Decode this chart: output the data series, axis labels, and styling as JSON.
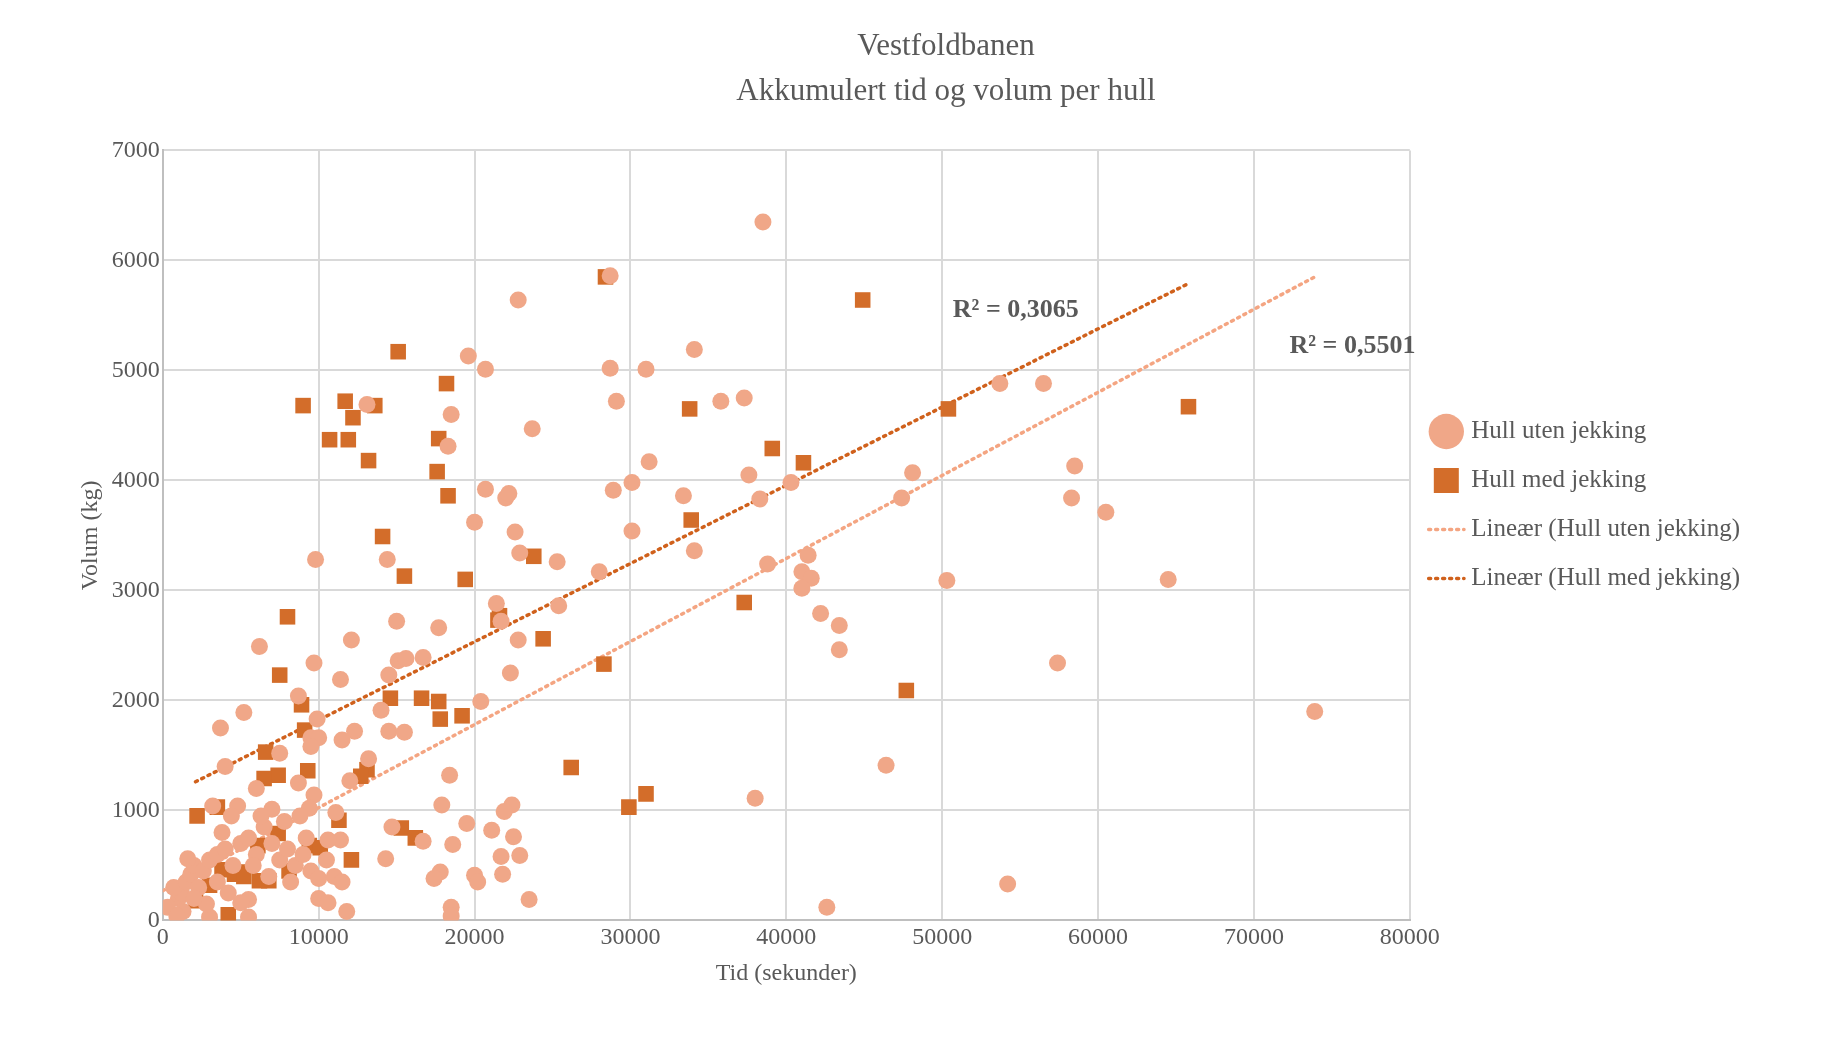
{
  "chart_data": {
    "type": "scatter",
    "title": "Vestfoldbanen",
    "subtitle": "Akkumulert tid og volum per hull",
    "xlabel": "Tid (sekunder)",
    "ylabel": "Volum (kg)",
    "xlim": [
      0,
      80000
    ],
    "xticks": [
      0,
      10000,
      20000,
      30000,
      40000,
      50000,
      60000,
      70000,
      80000
    ],
    "ylim": [
      0,
      7000
    ],
    "yticks": [
      0,
      1000,
      2000,
      3000,
      4000,
      5000,
      6000,
      7000
    ],
    "grid": true,
    "legend": "right",
    "series": [
      {
        "name": "Hull uten jekking",
        "marker": "circle",
        "color": "#f0a788",
        "x": [
          38500,
          28700,
          22800,
          34100,
          19600,
          20700,
          28700,
          31000,
          35800,
          37300,
          29100,
          13100,
          53700,
          56500,
          18500,
          18300,
          23700,
          31200,
          48100,
          58500,
          37600,
          40300,
          30100,
          28900,
          20700,
          33400,
          22000,
          22200,
          38300,
          47400,
          58300,
          60500,
          20000,
          22600,
          30100,
          34100,
          22900,
          41400,
          14400,
          9800,
          25300,
          38800,
          41000,
          28000,
          41600,
          50300,
          64500,
          41000,
          21400,
          25400,
          42200,
          15000,
          17700,
          43400,
          21700,
          22800,
          12100,
          6200,
          43400,
          57400,
          9700,
          15100,
          16700,
          15600,
          14500,
          22300,
          11400,
          8700,
          20400,
          9900,
          14000,
          73900,
          5200,
          3700,
          14500,
          15500,
          12300,
          9500,
          10000,
          11500,
          9500,
          7500,
          4000,
          13200,
          18400,
          46400,
          38000,
          8700,
          9700,
          12000,
          6000,
          3200,
          4800,
          7000,
          9400,
          17900,
          22400,
          21900,
          11100,
          14700,
          19500,
          11400,
          10600,
          16700,
          18600,
          21100,
          22500,
          21700,
          22900,
          17800,
          14300,
          20000,
          21800,
          17400,
          20200,
          10000,
          10600,
          11800,
          18500,
          18500,
          23500,
          42600,
          54200,
          5500,
          5500,
          3000,
          5000,
          1000,
          1200,
          300,
          700,
          1500,
          1800,
          2000,
          1600,
          2300,
          2600,
          3000,
          3500,
          4000,
          4500,
          5000,
          5500,
          6000,
          6500,
          7000,
          7500,
          8000,
          8500,
          9000,
          9500,
          10000,
          3500,
          4200,
          6800,
          8200,
          9200,
          2800,
          1300,
          900,
          2000,
          7800,
          8800,
          6300,
          4400,
          5800,
          3800,
          10500,
          11000,
          11500
        ],
        "values": [
          6350,
          5860,
          5640,
          5190,
          5130,
          5010,
          5020,
          5010,
          4720,
          4750,
          4720,
          4690,
          4880,
          4880,
          4600,
          4310,
          4470,
          4170,
          4070,
          4130,
          4050,
          3980,
          3980,
          3910,
          3920,
          3860,
          3840,
          3880,
          3830,
          3840,
          3840,
          3710,
          3620,
          3530,
          3540,
          3360,
          3340,
          3320,
          3280,
          3280,
          3260,
          3240,
          3170,
          3170,
          3110,
          3090,
          3100,
          3020,
          2880,
          2860,
          2790,
          2720,
          2660,
          2680,
          2720,
          2550,
          2550,
          2490,
          2460,
          2340,
          2340,
          2360,
          2390,
          2380,
          2230,
          2250,
          2190,
          2040,
          1990,
          1830,
          1910,
          1900,
          1890,
          1750,
          1720,
          1710,
          1720,
          1660,
          1660,
          1640,
          1580,
          1520,
          1400,
          1470,
          1320,
          1410,
          1110,
          1250,
          1140,
          1270,
          1200,
          1040,
          1040,
          1010,
          1020,
          1050,
          1050,
          990,
          980,
          850,
          880,
          730,
          730,
          720,
          690,
          820,
          760,
          580,
          590,
          440,
          560,
          410,
          420,
          380,
          350,
          200,
          160,
          80,
          120,
          40,
          190,
          120,
          330,
          190,
          30,
          30,
          160,
          200,
          250,
          120,
          300,
          350,
          420,
          500,
          560,
          300,
          450,
          550,
          600,
          650,
          500,
          700,
          750,
          600,
          850,
          700,
          550,
          650,
          500,
          600,
          450,
          380,
          350,
          250,
          400,
          350,
          750,
          150,
          80,
          40,
          200,
          900,
          950,
          950,
          950,
          500,
          800,
          550,
          400,
          350
        ]
      },
      {
        "name": "Hull med jekking",
        "marker": "square",
        "color": "#d36d2a",
        "x": [
          28400,
          44900,
          15100,
          18200,
          11700,
          9000,
          13600,
          12200,
          33800,
          50400,
          65800,
          10700,
          11900,
          17700,
          39100,
          13200,
          41100,
          17600,
          18300,
          33900,
          14100,
          23800,
          15500,
          19400,
          37300,
          21600,
          21500,
          8000,
          24400,
          7500,
          28300,
          47700,
          8900,
          16600,
          14600,
          17700,
          19200,
          17800,
          9100,
          6600,
          26200,
          13100,
          9300,
          7400,
          12700,
          6500,
          31000,
          29900,
          2200,
          3500,
          11300,
          15300,
          7400,
          16200,
          9400,
          10100,
          6100,
          12100,
          3800,
          8100,
          4900,
          4600,
          5200,
          6200,
          6800,
          3000,
          2100,
          4200
        ],
        "values": [
          5850,
          5640,
          5170,
          4880,
          4720,
          4680,
          4680,
          4570,
          4650,
          4650,
          4670,
          4370,
          4370,
          4380,
          4290,
          4180,
          4160,
          4080,
          3860,
          3640,
          3490,
          3310,
          3130,
          3100,
          2890,
          2770,
          2730,
          2760,
          2560,
          2230,
          2330,
          2090,
          1960,
          2020,
          2020,
          1990,
          1860,
          1830,
          1730,
          1530,
          1390,
          1370,
          1360,
          1320,
          1310,
          1290,
          1150,
          1030,
          950,
          1030,
          910,
          840,
          790,
          750,
          680,
          660,
          680,
          550,
          460,
          450,
          440,
          420,
          400,
          360,
          360,
          320,
          180,
          50
        ]
      },
      {
        "name": "Lineær (Hull uten jekking)",
        "type": "line",
        "line_style": "dotted",
        "color": "#f4a582",
        "x": [
          0,
          73900
        ],
        "values": [
          270,
          5850
        ]
      },
      {
        "name": "Lineær (Hull med jekking)",
        "type": "line",
        "line_style": "dotted",
        "color": "#d0611c",
        "x": [
          2100,
          65800
        ],
        "values": [
          1260,
          5790
        ]
      }
    ],
    "annotations": [
      "R² = 0,3065",
      "R² = 0,5501"
    ]
  }
}
